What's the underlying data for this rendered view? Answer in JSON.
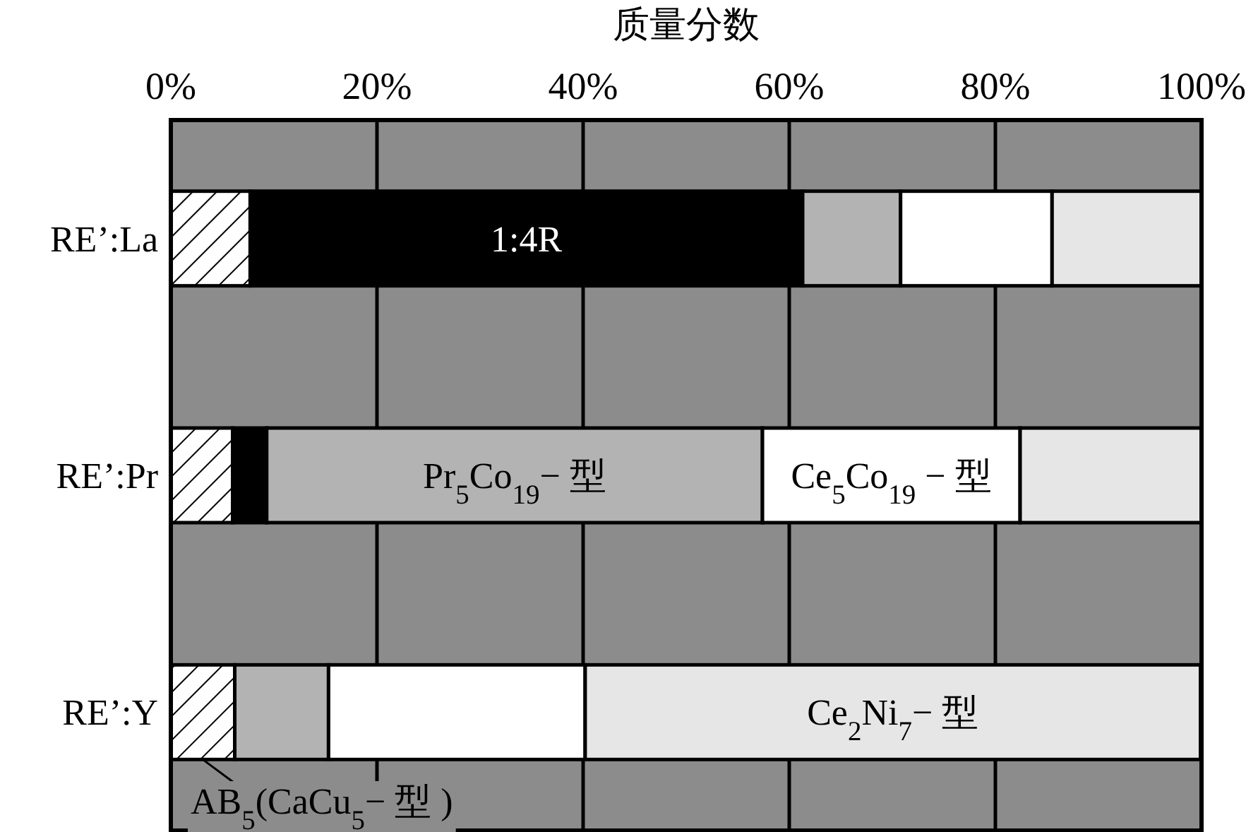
{
  "chart_data": {
    "type": "bar",
    "orientation": "horizontal",
    "stacked": true,
    "xlabel": "质量分数",
    "categories": [
      "RE’:La",
      "RE’:Pr",
      "RE’:Y"
    ],
    "series": [
      {
        "name": "AB$_{5}$(CaCu$_{5}$− 型 )",
        "color": "#ffffff",
        "values": [
          7.7,
          6.0,
          6.2
        ]
      },
      {
        "name": "1:4R",
        "color": "#000000",
        "values": [
          53.6,
          3.3,
          null
        ]
      },
      {
        "name": "Pr$_{5}$Co$_{19}$− 型",
        "color": "#b3b3b3",
        "values": [
          9.5,
          48.1,
          9.1
        ]
      },
      {
        "name": "Ce$_{5}$Co$_{19}$ − 型",
        "color": "#ffffff",
        "values": [
          14.7,
          25.0,
          24.9
        ]
      },
      {
        "name": "Ce$_{2}$Ni$_{7}$− 型",
        "color": "#e6e6e6",
        "values": [
          14.5,
          17.6,
          59.7
        ]
      }
    ],
    "xlim": [
      0,
      100
    ],
    "xticks": [
      {
        "value": 0,
        "label": "0%"
      },
      {
        "value": 20,
        "label": "20%"
      },
      {
        "value": 40,
        "label": "40%"
      },
      {
        "value": 60,
        "label": "60%"
      },
      {
        "value": 80,
        "label": "80%"
      },
      {
        "value": 100,
        "label": "100%"
      }
    ],
    "grid": "x",
    "legend": "bottom left"
  }
}
